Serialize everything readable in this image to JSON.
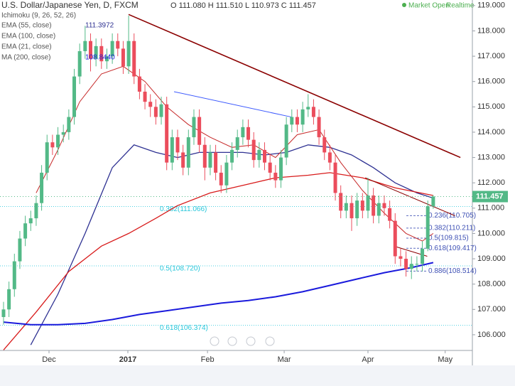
{
  "chart_data": {
    "type": "candlestick",
    "title": "U.S. Dollar/Japanese Yen, D, FXCM",
    "ohlc_text": "O 111.080 H 111.510 L 110.973 C 111.457",
    "status": "Market Open",
    "status_mode": "Realtime",
    "up_color": "#53b987",
    "down_color": "#eb4d5c",
    "x": [
      0,
      1,
      2,
      3,
      4,
      5,
      6,
      7,
      8,
      9,
      10,
      11,
      12,
      13,
      14,
      15,
      16,
      17,
      18,
      19,
      20,
      21,
      22,
      23,
      24,
      25,
      26,
      27,
      28,
      29,
      30,
      31,
      32,
      33,
      34,
      35,
      36,
      37,
      38,
      39,
      40,
      41,
      42,
      43,
      44,
      45,
      46,
      47,
      48,
      49,
      50,
      51,
      52,
      53,
      54,
      55,
      56,
      57,
      58,
      59,
      60,
      61,
      62,
      63,
      64,
      65,
      66,
      67,
      68,
      69,
      70,
      71,
      72,
      73,
      74,
      75,
      76,
      77,
      78,
      79
    ],
    "open": [
      106.7,
      107.0,
      107.8,
      108.9,
      109.8,
      110.4,
      110.6,
      111.2,
      112.4,
      113.6,
      113.4,
      113.9,
      114.0,
      114.6,
      116.2,
      117.2,
      117.6,
      116.9,
      117.4,
      116.8,
      117.0,
      117.6,
      117.3,
      116.6,
      117.6,
      116.2,
      115.6,
      115.2,
      115.0,
      114.6,
      115.1,
      112.8,
      113.8,
      113.2,
      112.6,
      113.8,
      114.6,
      113.5,
      112.6,
      113.2,
      112.4,
      111.9,
      112.8,
      113.3,
      113.8,
      114.2,
      113.7,
      112.9,
      113.3,
      112.8,
      112.4,
      112.1,
      113.0,
      114.3,
      114.6,
      114.3,
      114.9,
      115.0,
      114.6,
      113.8,
      113.2,
      112.8,
      111.6,
      110.9,
      111.2,
      110.6,
      111.3,
      110.9,
      111.5,
      110.7,
      111.2,
      111.0,
      110.5,
      109.1,
      109.0,
      108.6,
      108.8,
      108.8,
      109.4,
      111.08
    ],
    "high": [
      107.3,
      108.1,
      109.2,
      110.1,
      110.7,
      110.9,
      111.5,
      112.7,
      113.9,
      113.9,
      114.2,
      114.3,
      114.9,
      116.5,
      117.5,
      118.2,
      117.9,
      117.7,
      117.7,
      117.3,
      117.9,
      117.9,
      117.6,
      118.6,
      117.9,
      116.5,
      115.9,
      115.5,
      115.3,
      115.4,
      115.4,
      114.1,
      114.1,
      113.5,
      114.1,
      114.9,
      114.9,
      113.8,
      113.5,
      113.5,
      112.7,
      113.1,
      113.6,
      114.1,
      114.5,
      114.5,
      114.0,
      113.6,
      113.6,
      113.1,
      112.7,
      113.3,
      114.6,
      114.9,
      114.9,
      115.2,
      115.5,
      115.3,
      114.9,
      114.1,
      113.5,
      113.1,
      111.9,
      111.5,
      111.5,
      111.6,
      111.6,
      112.2,
      111.8,
      111.5,
      111.5,
      111.3,
      110.8,
      109.4,
      109.3,
      109.1,
      109.1,
      109.7,
      111.3,
      111.51
    ],
    "low": [
      106.4,
      106.7,
      107.5,
      108.6,
      109.5,
      110.1,
      110.3,
      110.9,
      112.1,
      113.1,
      113.1,
      113.6,
      113.7,
      114.3,
      115.9,
      116.9,
      116.4,
      116.6,
      116.5,
      116.5,
      116.7,
      117.0,
      116.3,
      116.3,
      115.9,
      115.3,
      114.9,
      114.6,
      114.3,
      114.3,
      112.5,
      112.5,
      112.9,
      112.3,
      112.3,
      113.5,
      113.2,
      112.1,
      112.3,
      112.1,
      111.6,
      111.6,
      112.5,
      113.0,
      113.5,
      113.4,
      112.6,
      112.6,
      112.5,
      112.1,
      111.8,
      111.8,
      112.7,
      114.0,
      114.0,
      114.0,
      114.6,
      114.3,
      113.5,
      112.9,
      112.5,
      111.3,
      110.6,
      110.6,
      110.1,
      110.3,
      110.6,
      110.6,
      110.4,
      110.4,
      110.7,
      110.2,
      108.8,
      108.7,
      108.3,
      108.2,
      108.5,
      108.5,
      109.3,
      110.973
    ],
    "close": [
      107.0,
      107.8,
      108.9,
      109.8,
      110.4,
      110.6,
      111.2,
      112.4,
      113.6,
      113.4,
      113.9,
      114.0,
      114.6,
      116.2,
      117.2,
      117.6,
      116.9,
      117.4,
      116.8,
      117.0,
      117.6,
      117.3,
      116.6,
      117.6,
      116.2,
      115.6,
      115.2,
      115.0,
      114.6,
      115.1,
      112.8,
      113.8,
      113.2,
      112.6,
      113.8,
      114.6,
      113.5,
      112.6,
      113.2,
      112.4,
      111.9,
      112.8,
      113.3,
      113.8,
      114.2,
      113.7,
      112.9,
      113.3,
      112.8,
      112.4,
      112.1,
      113.0,
      114.3,
      114.6,
      114.3,
      114.9,
      115.0,
      114.6,
      113.8,
      113.2,
      112.8,
      111.6,
      110.9,
      111.2,
      110.6,
      111.3,
      110.9,
      111.5,
      110.7,
      111.2,
      111.0,
      110.5,
      109.1,
      109.0,
      108.6,
      108.8,
      108.8,
      109.4,
      111.08,
      111.457
    ],
    "xlim": [
      -0.65,
      86.2
    ],
    "xticks": [
      {
        "value": 8.36,
        "label": "Dec"
      },
      {
        "value": 22.86,
        "label": "2017"
      },
      {
        "value": 37.5,
        "label": "Feb"
      },
      {
        "value": 51.6,
        "label": "Mar"
      },
      {
        "value": 67.0,
        "label": "Apr"
      },
      {
        "value": 81.2,
        "label": "May"
      }
    ],
    "ylim": [
      105.38,
      119.22
    ],
    "yticks": [
      {
        "value": 106,
        "label": "106.000"
      },
      {
        "value": 107,
        "label": "107.000"
      },
      {
        "value": 108,
        "label": "108.000"
      },
      {
        "value": 109,
        "label": "109.000"
      },
      {
        "value": 110,
        "label": "110.000"
      },
      {
        "value": 111,
        "label": "111.000"
      },
      {
        "value": 112,
        "label": "112.000"
      },
      {
        "value": 113,
        "label": "113.000"
      },
      {
        "value": 114,
        "label": "114.000"
      },
      {
        "value": 115,
        "label": "115.000"
      },
      {
        "value": 116,
        "label": "116.000"
      },
      {
        "value": 117,
        "label": "117.000"
      },
      {
        "value": 118,
        "label": "118.000"
      },
      {
        "value": 119,
        "label": "119.000"
      }
    ],
    "legend_header": "Ichimoku (9, 26, 52, 26)",
    "series": [
      {
        "name": "EMA (55, close)",
        "color": "#2e3192",
        "width": 1.3,
        "legend_value": "111.3972",
        "x": [
          5,
          10,
          15,
          20,
          24,
          28,
          32,
          36,
          40,
          44,
          48,
          52,
          56,
          60,
          64,
          68,
          72,
          76,
          79
        ],
        "values": [
          105.6,
          107.6,
          110.0,
          112.6,
          113.5,
          113.2,
          113.0,
          113.2,
          113.2,
          113.2,
          113.1,
          113.2,
          113.5,
          113.4,
          113.1,
          112.6,
          112.0,
          111.6,
          111.4
        ]
      },
      {
        "name": "EMA (100, close)",
        "color": "#d81b1b",
        "width": 1.3,
        "x": [
          0,
          6,
          12,
          18,
          23,
          28,
          32,
          38,
          44,
          50,
          56,
          60,
          66,
          72,
          79
        ],
        "values": [
          105.4,
          106.9,
          108.5,
          109.5,
          110.0,
          110.6,
          111.1,
          111.6,
          111.9,
          112.2,
          112.3,
          112.4,
          112.2,
          111.8,
          111.5
        ]
      },
      {
        "name": "EMA (21, close)",
        "color": "#c62828",
        "width": 1,
        "x": [
          6,
          10,
          14,
          18,
          22,
          26,
          30,
          34,
          38,
          42,
          46,
          50,
          54,
          58,
          62,
          66,
          70,
          74,
          77,
          79
        ],
        "values": [
          111.6,
          113.3,
          115.2,
          116.3,
          116.6,
          116.0,
          115.0,
          114.3,
          113.8,
          113.4,
          113.5,
          113.0,
          113.9,
          114.1,
          112.8,
          111.7,
          110.8,
          110.0,
          109.7,
          110.0
        ]
      },
      {
        "name": "MA (200, close)",
        "color": "#1a1adc",
        "width": 2,
        "legend_value": "108.8440",
        "x": [
          0,
          5,
          10,
          15,
          20,
          25,
          30,
          35,
          40,
          45,
          50,
          55,
          60,
          65,
          70,
          75,
          79
        ],
        "values": [
          106.5,
          106.4,
          106.4,
          106.45,
          106.6,
          106.8,
          106.95,
          107.1,
          107.25,
          107.35,
          107.5,
          107.7,
          107.95,
          108.2,
          108.45,
          108.65,
          108.85
        ]
      }
    ],
    "trendlines": [
      {
        "color": "#8b0000",
        "x": [
          22.99,
          84.0
        ],
        "values": [
          118.65,
          113.0
        ]
      },
      {
        "color": "#3d5afe",
        "x": [
          31.35,
          52.9
        ],
        "values": [
          115.6,
          114.6
        ]
      },
      {
        "color": "#8b0000",
        "x": [
          66.5,
          83.0
        ],
        "values": [
          112.2,
          110.7
        ]
      },
      {
        "color": "#8b0000",
        "x": [
          71.8,
          77.9
        ],
        "values": [
          109.5,
          109.1
        ]
      }
    ],
    "fib_levels": [
      {
        "value": 111.066,
        "label": "0.382(111.066)"
      },
      {
        "value": 108.72,
        "label": "0.5(108.720)"
      },
      {
        "value": 106.374,
        "label": "0.618(106.374)"
      }
    ],
    "fib_levels_right": [
      {
        "value": 110.705,
        "label": "0.236(110.705)"
      },
      {
        "value": 110.211,
        "label": "0.382(110.211)"
      },
      {
        "value": 109.815,
        "label": "0.5(109.815)"
      },
      {
        "value": 109.417,
        "label": "0.618(109.417)"
      },
      {
        "value": 108.514,
        "label": "0.886(108.514)"
      }
    ]
  }
}
